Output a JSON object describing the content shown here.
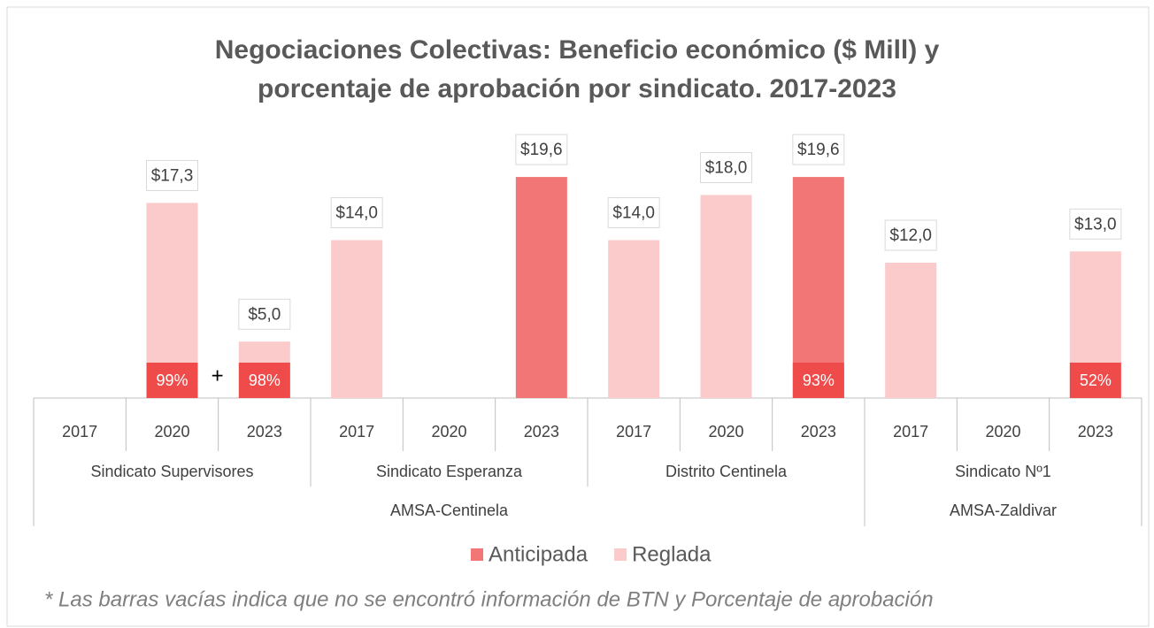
{
  "chart_data": {
    "type": "bar",
    "title": [
      "Negociaciones Colectivas: Beneficio económico ($ Mill) y",
      "porcentaje de aprobación por sindicato. 2017-2023"
    ],
    "groups": [
      {
        "label": "AMSA-Centinela",
        "subgroups": [
          {
            "label": "Sindicato Supervisores",
            "categories": [
              "2017",
              "2020",
              "2023"
            ]
          },
          {
            "label": "Sindicato Esperanza",
            "categories": [
              "2017",
              "2020",
              "2023"
            ]
          },
          {
            "label": "Distrito Centinela",
            "categories": [
              "2017",
              "2020",
              "2023"
            ]
          }
        ]
      },
      {
        "label": "AMSA-Zaldivar",
        "subgroups": [
          {
            "label": "Sindicato Nº1",
            "categories": [
              "2017",
              "2020",
              "2023"
            ]
          }
        ]
      }
    ],
    "series": [
      {
        "name": "Anticipada",
        "color": "#f27676",
        "values": [
          null,
          null,
          null,
          null,
          null,
          19.6,
          null,
          null,
          19.6,
          null,
          null,
          null
        ],
        "value_labels": [
          null,
          null,
          null,
          null,
          null,
          "$19,6",
          null,
          null,
          "$19,6",
          null,
          null,
          null
        ]
      },
      {
        "name": "Reglada",
        "color": "#fbcaca",
        "values": [
          null,
          17.3,
          5.0,
          14.0,
          null,
          null,
          14.0,
          18.0,
          null,
          12.0,
          null,
          13.0
        ],
        "value_labels": [
          null,
          "$17,3",
          "$5,0",
          "$14,0",
          null,
          null,
          "$14,0",
          "$18,0",
          null,
          "$12,0",
          null,
          "$13,0"
        ]
      }
    ],
    "approval": {
      "color": "#ef4b4b",
      "values": [
        null,
        99,
        98,
        null,
        null,
        null,
        null,
        null,
        93,
        null,
        null,
        52
      ],
      "value_labels": [
        null,
        "99%",
        "98%",
        null,
        null,
        null,
        null,
        null,
        "93%",
        null,
        null,
        "52%"
      ]
    },
    "annotations": [
      "+"
    ],
    "ylim": [
      0,
      20
    ],
    "footnote": "* Las barras vacías indica que no se encontró información  de BTN y Porcentaje de aprobación"
  }
}
